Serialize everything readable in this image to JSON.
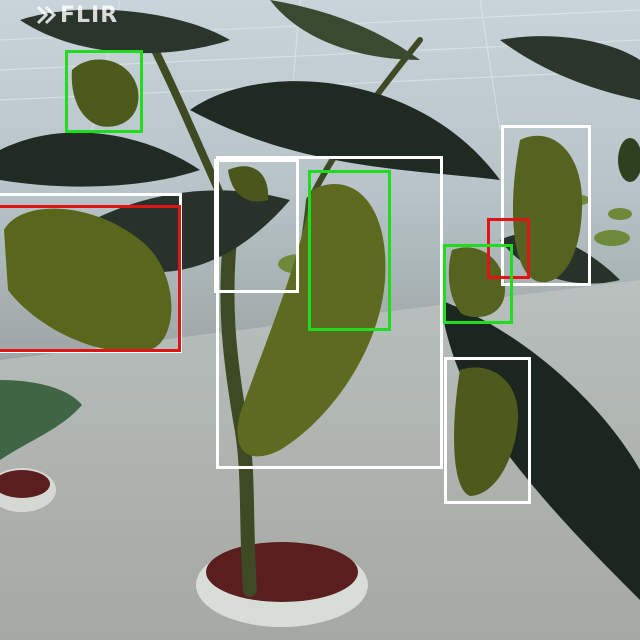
{
  "watermark": {
    "text": "FLIR"
  },
  "annotations": {
    "colors": {
      "green": "#1fdc1f",
      "red": "#e01414",
      "white": "#ffffff"
    },
    "boxes": [
      {
        "name": "green-box-top-left-pepper",
        "color": "green"
      },
      {
        "name": "white-box-left-pepper",
        "color": "white"
      },
      {
        "name": "red-box-left-pepper",
        "color": "red"
      },
      {
        "name": "white-box-upper-center-pepper",
        "color": "white"
      },
      {
        "name": "white-box-center-pepper-cluster",
        "color": "white"
      },
      {
        "name": "green-box-center-pepper",
        "color": "green"
      },
      {
        "name": "white-box-right-pepper",
        "color": "white"
      },
      {
        "name": "red-box-right-small-pepper",
        "color": "red"
      },
      {
        "name": "green-box-right-pepper",
        "color": "green"
      },
      {
        "name": "white-box-lower-right-pepper",
        "color": "white"
      }
    ]
  }
}
